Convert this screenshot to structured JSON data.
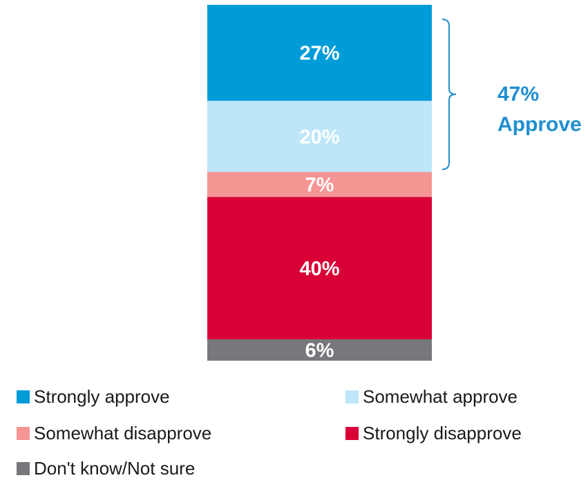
{
  "chart_data": {
    "type": "bar",
    "stacked": true,
    "categories": [
      ""
    ],
    "series": [
      {
        "name": "Strongly approve",
        "values": [
          27
        ],
        "label": "27%",
        "color": "#009cd9"
      },
      {
        "name": "Somewhat approve",
        "values": [
          20
        ],
        "label": "20%",
        "color": "#bde6f8"
      },
      {
        "name": "Somewhat disapprove",
        "values": [
          7
        ],
        "label": "7%",
        "color": "#f59593"
      },
      {
        "name": "Strongly disapprove",
        "values": [
          40
        ],
        "label": "40%",
        "color": "#d80036"
      },
      {
        "name": "Don't know/Not sure",
        "values": [
          6
        ],
        "label": "6%",
        "color": "#77787b"
      }
    ],
    "annotation": {
      "line1": "47%",
      "line2": "Approve",
      "spans_series": [
        "Strongly approve",
        "Somewhat approve"
      ],
      "color": "#1f8fd0"
    },
    "legend_position": "bottom",
    "grid": false
  }
}
